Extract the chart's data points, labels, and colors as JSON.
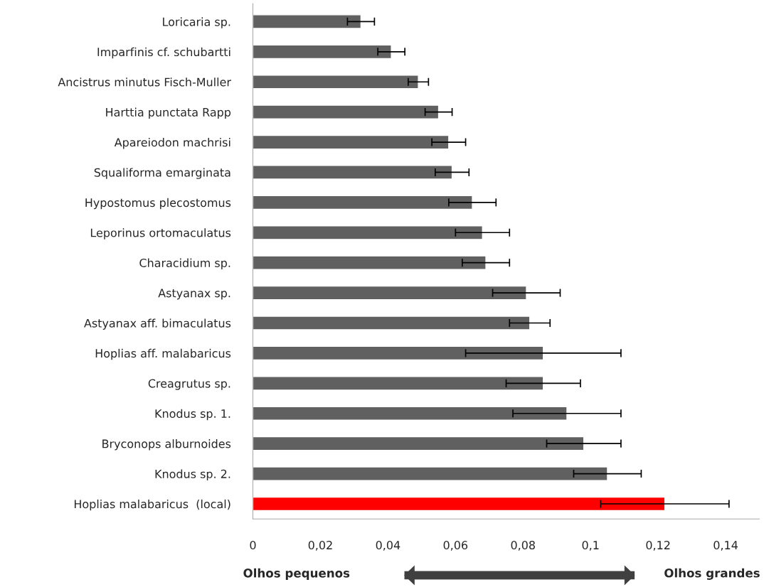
{
  "chart_data": {
    "type": "bar",
    "orientation": "horizontal",
    "categories": [
      "Loricaria sp.",
      "Imparfinis cf. schubartti",
      "Ancistrus minutus Fisch-Muller",
      "Harttia punctata Rapp",
      "Apareiodon machrisi",
      "Squaliforma emarginata",
      "Hypostomus plecostomus",
      "Leporinus ortomaculatus",
      "Characidium sp.",
      "Astyanax sp.",
      "Astyanax aff. bimaculatus",
      "Hoplias aff. malabaricus",
      "Creagrutus sp.",
      "Knodus sp. 1.",
      "Bryconops alburnoides",
      "Knodus sp. 2.",
      "Hoplias malabaricus  (local)"
    ],
    "values": [
      0.032,
      0.041,
      0.049,
      0.055,
      0.058,
      0.059,
      0.065,
      0.068,
      0.069,
      0.081,
      0.082,
      0.086,
      0.086,
      0.093,
      0.098,
      0.105,
      0.122
    ],
    "errors": [
      0.004,
      0.004,
      0.003,
      0.004,
      0.005,
      0.005,
      0.007,
      0.008,
      0.007,
      0.01,
      0.006,
      0.023,
      0.011,
      0.016,
      0.011,
      0.01,
      0.019
    ],
    "colors": [
      "#606060",
      "#606060",
      "#606060",
      "#606060",
      "#606060",
      "#606060",
      "#606060",
      "#606060",
      "#606060",
      "#606060",
      "#606060",
      "#606060",
      "#606060",
      "#606060",
      "#606060",
      "#606060",
      "#ff0000"
    ],
    "xlim": [
      0,
      0.15
    ],
    "xticks": [
      {
        "value": 0,
        "label": "0"
      },
      {
        "value": 0.02,
        "label": "0,02"
      },
      {
        "value": 0.04,
        "label": "0,04"
      },
      {
        "value": 0.06,
        "label": "0,06"
      },
      {
        "value": 0.08,
        "label": "0,08"
      },
      {
        "value": 0.1,
        "label": "0,1"
      },
      {
        "value": 0.12,
        "label": "0,12"
      },
      {
        "value": 0.14,
        "label": "0,14"
      }
    ],
    "grid": false,
    "annotations": [
      "Olhos pequenos",
      "Olhos grandes"
    ]
  }
}
